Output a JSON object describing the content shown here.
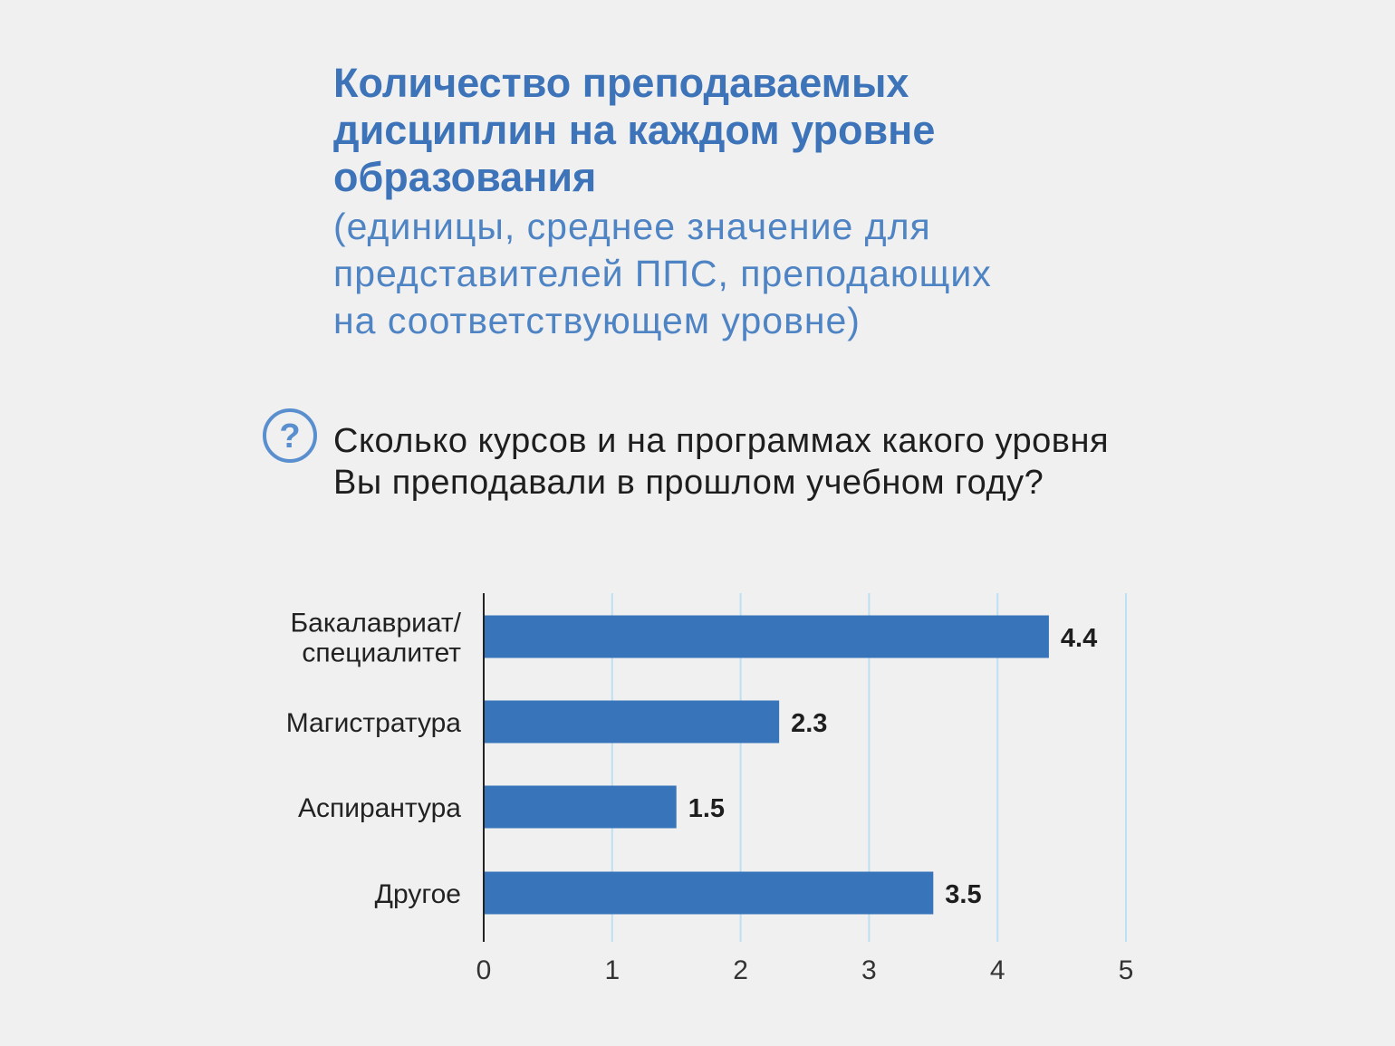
{
  "header": {
    "title": "Количество преподаваемых дисциплин на каждом уровне образования",
    "subtitle": "(единицы, среднее значение для представителей ППС, преподающих на соответствующем уровне)"
  },
  "question": {
    "icon": "question-circle-icon",
    "text": "Сколько курсов и на программах какого уровня Вы преподавали в прошлом учебном году?"
  },
  "colors": {
    "title": "#3d73b8",
    "bar": "#3874b9",
    "grid": "#bfe0f2",
    "axis": "#222222"
  },
  "chart_data": {
    "type": "bar",
    "orientation": "horizontal",
    "title": "",
    "xlabel": "",
    "ylabel": "",
    "categories": [
      [
        "Бакалавриат/",
        "специалитет"
      ],
      [
        "Магистратура"
      ],
      [
        "Аспирантура"
      ],
      [
        "Другое"
      ]
    ],
    "values": [
      4.4,
      2.3,
      1.5,
      3.5
    ],
    "value_labels": [
      "4.4",
      "2.3",
      "1.5",
      "3.5"
    ],
    "xlim": [
      0,
      5
    ],
    "xticks": [
      "0",
      "1",
      "2",
      "3",
      "4",
      "5"
    ],
    "grid": "vertical",
    "legend": "none"
  }
}
